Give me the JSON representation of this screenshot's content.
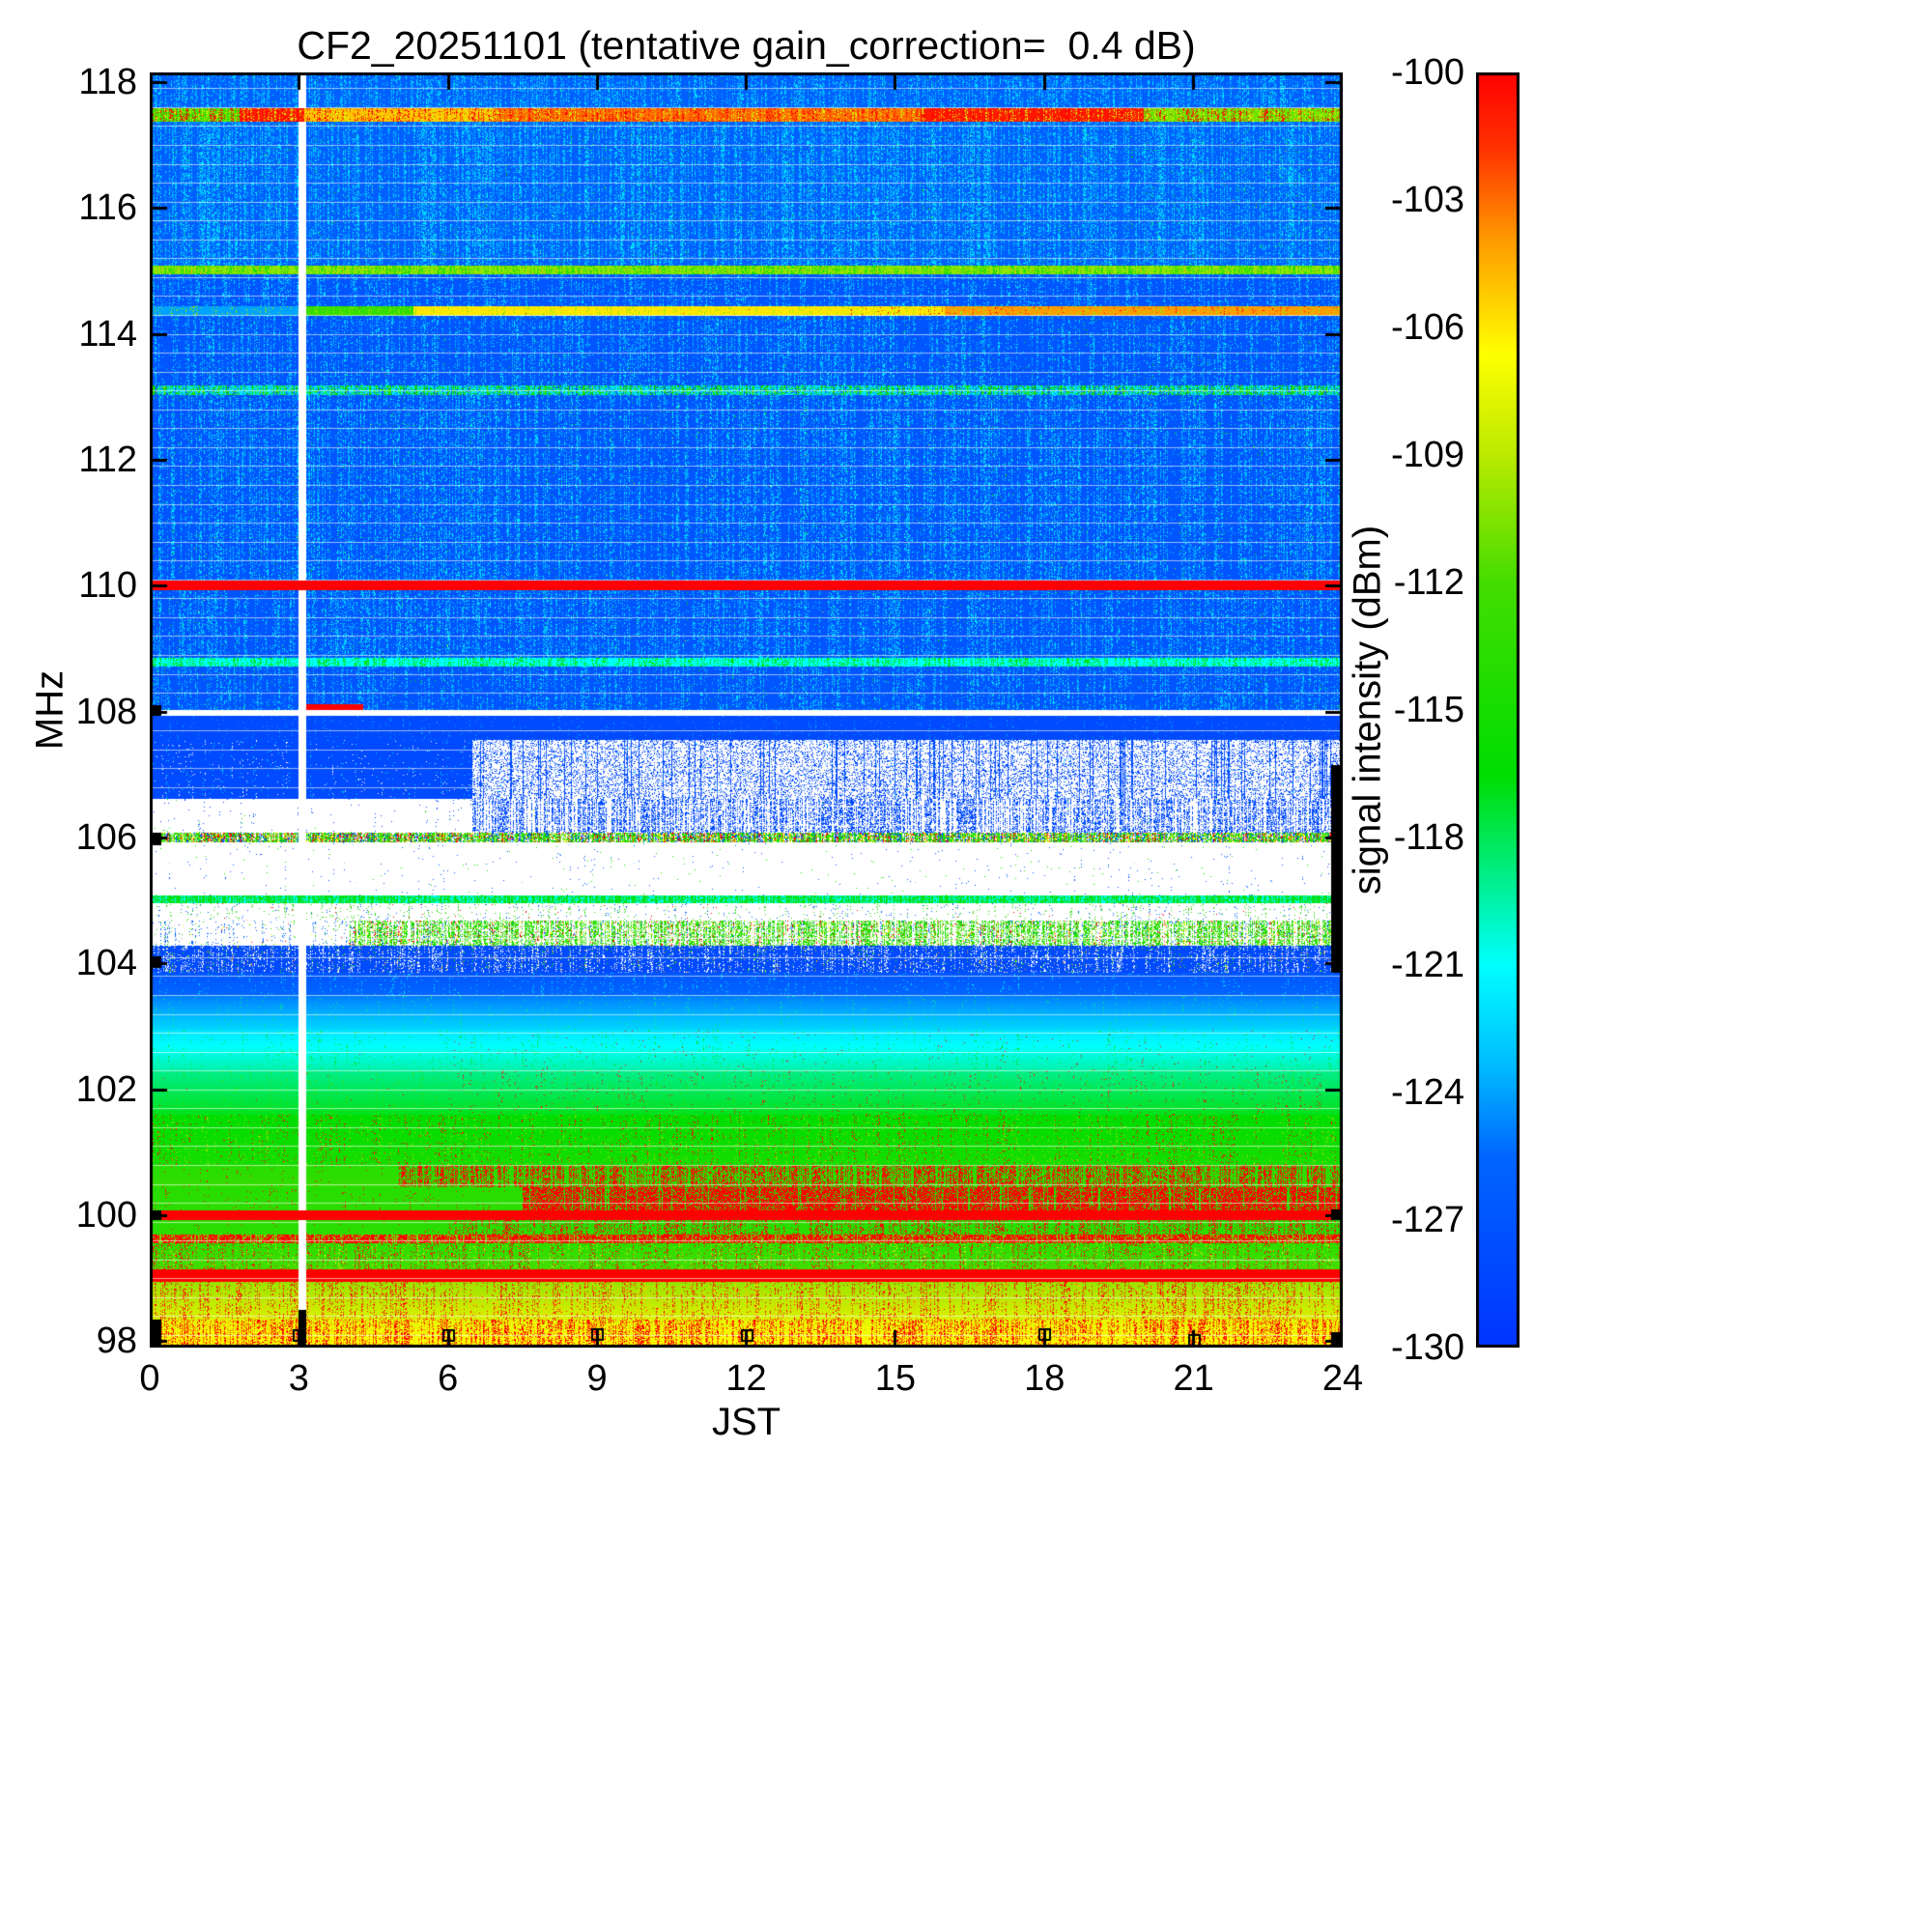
{
  "chart_data": {
    "type": "heatmap",
    "title": "CF2_20251101 (tentative gain_correction=  0.4 dB)",
    "xlabel": "JST",
    "ylabel": "MHz",
    "x_range": [
      0,
      24
    ],
    "x_ticks": [
      0,
      3,
      6,
      9,
      12,
      15,
      18,
      21,
      24
    ],
    "y_range": [
      97.9,
      118.15
    ],
    "y_ticks": [
      98,
      100,
      102,
      104,
      106,
      108,
      110,
      112,
      114,
      116,
      118
    ],
    "colorbar": {
      "label": "signal intensity (dBm)",
      "max_dbm": -100,
      "min_dbm": -130,
      "ticks": [
        -100,
        -103,
        -106,
        -109,
        -112,
        -115,
        -118,
        -121,
        -124,
        -127,
        -130
      ],
      "stops": [
        [
          0.0,
          0,
          51,
          255
        ],
        [
          0.15,
          0,
          102,
          255
        ],
        [
          0.22,
          0,
          187,
          255
        ],
        [
          0.3,
          0,
          255,
          255
        ],
        [
          0.37,
          0,
          238,
          136
        ],
        [
          0.45,
          0,
          221,
          0
        ],
        [
          0.6,
          68,
          221,
          0
        ],
        [
          0.7,
          187,
          234,
          0
        ],
        [
          0.78,
          255,
          255,
          0
        ],
        [
          0.87,
          255,
          153,
          0
        ],
        [
          0.94,
          255,
          51,
          0
        ],
        [
          1.0,
          255,
          0,
          0
        ]
      ]
    },
    "data_gap": {
      "jst_start": 3.0,
      "jst_end": 3.14,
      "bottom_black_f": [
        97.9,
        98.5
      ]
    },
    "strong_carriers_mhz": [
      100.0,
      105.0,
      110.0,
      113.1,
      114.35,
      115.0,
      117.5
    ],
    "fine_lines": {
      "f_start": 98.1,
      "f_end": 118.1,
      "spacing_mhz": 0.3
    },
    "bands": [
      {
        "f0": 97.9,
        "f1": 98.35,
        "level": -106.5,
        "level2": -107.5,
        "sp": [
          {
            "l": -100,
            "d": 0.18
          },
          {
            "l": -104,
            "d": 0.1
          }
        ]
      },
      {
        "f0": 98.35,
        "f1": 98.95,
        "level": -108,
        "level2": -110,
        "sp": [
          {
            "l": -100,
            "d": 0.12
          },
          {
            "l": -105,
            "d": 0.08
          }
        ]
      },
      {
        "f0": 98.95,
        "f1": 99.15,
        "level": -106,
        "sp": [
          {
            "l": -100,
            "d": 0.55
          }
        ]
      },
      {
        "f0": 99.15,
        "f1": 99.55,
        "level": -112,
        "level2": -113.5,
        "sp": [
          {
            "l": -100,
            "d": 0.1
          },
          {
            "l": -108,
            "d": 0.06
          }
        ]
      },
      {
        "f0": 99.55,
        "f1": 99.7,
        "level": -111,
        "sp": [
          {
            "l": -100,
            "d": 0.3
          }
        ]
      },
      {
        "f0": 99.7,
        "f1": 99.93,
        "level": -113.5,
        "level2": -114,
        "sp": [
          {
            "l": -100,
            "d": 0.15,
            "t0": 6
          }
        ]
      },
      {
        "f0": 99.93,
        "f1": 100.08,
        "level": -100,
        "continuous": true
      },
      {
        "f0": 100.08,
        "f1": 100.45,
        "level": -113.5,
        "level2": -114,
        "sp": [
          {
            "l": -100,
            "d": 0.3,
            "t0": 7.5
          }
        ]
      },
      {
        "f0": 100.45,
        "f1": 100.8,
        "level": -113,
        "level2": -114,
        "sp": [
          {
            "l": -100,
            "d": 0.22,
            "t0": 5
          }
        ]
      },
      {
        "f0": 100.8,
        "f1": 101.6,
        "level": -115,
        "level2": -116.5,
        "sp": [
          {
            "l": -100,
            "d": 0.06
          },
          {
            "l": -110,
            "d": 0.05
          }
        ]
      },
      {
        "f0": 101.6,
        "f1": 102.3,
        "level": -117,
        "level2": -119,
        "sp": [
          {
            "l": -100,
            "d": 0.035,
            "t0": 6
          },
          {
            "l": -113,
            "d": 0.05
          }
        ]
      },
      {
        "f0": 102.3,
        "f1": 102.95,
        "level": -119.5,
        "level2": -122,
        "sp": [
          {
            "l": -100,
            "d": 0.015,
            "t0": 6
          },
          {
            "l": -116,
            "d": 0.04
          }
        ]
      },
      {
        "f0": 102.95,
        "f1": 103.5,
        "level": -122.5,
        "level2": -125,
        "sp": [
          {
            "l": -119,
            "d": 0.04
          }
        ]
      },
      {
        "f0": 103.5,
        "f1": 103.85,
        "level": -125.5,
        "level2": -127,
        "sp": [
          {
            "l": -122,
            "d": 0.05
          }
        ]
      },
      {
        "f0": 103.85,
        "f1": 104.28,
        "level": -128,
        "sp": [
          {
            "w": true,
            "d": 0.12
          },
          {
            "l": -104,
            "d": 0.03
          },
          {
            "l": -114,
            "d": 0.04
          }
        ]
      },
      {
        "f0": 104.28,
        "f1": 104.68,
        "level": null,
        "sp": [
          {
            "l": -114,
            "d": 0.22,
            "t0": 4
          },
          {
            "l": -100,
            "d": 0.08,
            "t0": 4
          },
          {
            "l": -107,
            "d": 0.08,
            "t0": 4
          },
          {
            "l": -126,
            "d": 0.08
          }
        ]
      },
      {
        "f0": 104.68,
        "f1": 104.95,
        "level": null,
        "sp": [
          {
            "l": -114,
            "d": 0.05
          },
          {
            "l": -126,
            "d": 0.04
          },
          {
            "l": -100,
            "d": 0.012
          }
        ]
      },
      {
        "f0": 104.95,
        "f1": 105.08,
        "level": -117,
        "continuous": true,
        "sp": [
          {
            "l": -121,
            "d": 0.2
          }
        ]
      },
      {
        "f0": 105.08,
        "f1": 105.93,
        "level": null,
        "sp": [
          {
            "l": -127,
            "d": 0.02
          },
          {
            "l": -115,
            "d": 0.01
          }
        ]
      },
      {
        "f0": 105.93,
        "f1": 106.08,
        "level": -114,
        "sp": [
          {
            "l": -100,
            "d": 0.12
          },
          {
            "l": -106,
            "d": 0.12
          },
          {
            "l": -127,
            "d": 0.15
          },
          {
            "w": true,
            "d": 0.2
          }
        ]
      },
      {
        "f0": 106.08,
        "f1": 106.62,
        "level": null,
        "sp": [
          {
            "l": -128,
            "d": 0.22,
            "t0": 6.5
          },
          {
            "l": -115,
            "d": 0.01
          }
        ]
      },
      {
        "f0": 106.62,
        "f1": 107.55,
        "level": -128,
        "sp": [
          {
            "w": true,
            "d": 0.3,
            "t0": 6.5
          },
          {
            "l": -122,
            "d": 0.03
          }
        ]
      },
      {
        "f0": 107.55,
        "f1": 107.93,
        "level": -128,
        "sp": [
          {
            "l": -124,
            "d": 0.05
          }
        ]
      },
      {
        "f0": 107.93,
        "f1": 108.03,
        "level": null
      },
      {
        "f0": 108.03,
        "f1": 108.72,
        "level": -127,
        "sp": [
          {
            "l": -122,
            "d": 0.12
          },
          {
            "l": -116,
            "d": 0.012
          }
        ]
      },
      {
        "f0": 108.72,
        "f1": 108.85,
        "level": -121,
        "sp": [
          {
            "l": -117,
            "d": 0.2
          }
        ]
      },
      {
        "f0": 108.85,
        "f1": 109.93,
        "level": -127,
        "sp": [
          {
            "l": -122,
            "d": 0.13
          },
          {
            "l": -116,
            "d": 0.012
          },
          {
            "l": -108,
            "d": 0.002
          }
        ]
      },
      {
        "f0": 109.93,
        "f1": 110.08,
        "level": -100,
        "continuous": true
      },
      {
        "f0": 110.08,
        "f1": 113.03,
        "level": -127,
        "sp": [
          {
            "l": -122,
            "d": 0.14
          },
          {
            "l": -116,
            "d": 0.015
          },
          {
            "l": -108,
            "d": 0.002
          }
        ]
      },
      {
        "f0": 113.03,
        "f1": 113.18,
        "level": -115,
        "sp": [
          {
            "l": -122,
            "d": 0.25
          },
          {
            "l": -127,
            "d": 0.2
          },
          {
            "l": -104,
            "d": 0.03
          }
        ]
      },
      {
        "f0": 113.18,
        "f1": 114.28,
        "level": -127,
        "sp": [
          {
            "l": -122,
            "d": 0.13
          },
          {
            "l": -116,
            "d": 0.012
          }
        ]
      },
      {
        "f0": 114.28,
        "f1": 114.44,
        "segments": [
          {
            "t0": 0,
            "t1": 3.1,
            "level": -124
          },
          {
            "t0": 3.1,
            "t1": 5.3,
            "level": -113
          },
          {
            "t0": 5.3,
            "t1": 16,
            "level": -106
          },
          {
            "t0": 16,
            "t1": 24,
            "level": -104
          }
        ],
        "sp": [
          {
            "l": -100,
            "d": 0.06,
            "t0": 14
          },
          {
            "l": -110,
            "d": 0.1
          }
        ]
      },
      {
        "f0": 114.44,
        "f1": 114.95,
        "level": -127,
        "sp": [
          {
            "l": -122,
            "d": 0.12
          }
        ]
      },
      {
        "f0": 114.95,
        "f1": 115.08,
        "level": -110,
        "sp": [
          {
            "l": -114,
            "d": 0.2
          },
          {
            "l": -104,
            "d": 0.05
          }
        ]
      },
      {
        "f0": 115.08,
        "f1": 117.36,
        "level": -126,
        "sp": [
          {
            "l": -122,
            "d": 0.16
          },
          {
            "l": -116,
            "d": 0.015
          },
          {
            "l": -108,
            "d": 0.002
          }
        ]
      },
      {
        "f0": 117.36,
        "f1": 117.58,
        "continuous": true,
        "segments": [
          {
            "t0": 0,
            "t1": 1.8,
            "level": -112
          },
          {
            "t0": 1.8,
            "t1": 3.1,
            "level": -101
          },
          {
            "t0": 3.1,
            "t1": 7,
            "level": -105
          },
          {
            "t0": 7,
            "t1": 15.5,
            "level": -103
          },
          {
            "t0": 15.5,
            "t1": 20,
            "level": -101
          },
          {
            "t0": 20,
            "t1": 24,
            "level": -111
          }
        ],
        "sp": [
          {
            "l": -100,
            "d": 0.15
          },
          {
            "l": -108,
            "d": 0.15
          }
        ]
      },
      {
        "f0": 117.58,
        "f1": 118.15,
        "level": -126,
        "sp": [
          {
            "l": -122,
            "d": 0.15
          },
          {
            "l": -115,
            "d": 0.01
          }
        ]
      }
    ],
    "features": [
      {
        "f0": 108.02,
        "f1": 108.12,
        "t0": 3.15,
        "t1": 4.3,
        "level": -100
      }
    ],
    "edge_marks": {
      "left": [
        [
          97.9,
          98.35
        ],
        [
          99.93,
          100.08
        ],
        [
          103.93,
          104.12
        ],
        [
          105.88,
          106.08
        ],
        [
          107.93,
          108.1
        ]
      ],
      "right": [
        [
          97.9,
          98.15
        ],
        [
          99.93,
          100.1
        ],
        [
          103.85,
          107.15
        ]
      ]
    },
    "markers": [
      {
        "t": 3.0,
        "f": 98.1
      },
      {
        "t": 6.0,
        "f": 98.1
      },
      {
        "t": 9.0,
        "f": 98.12
      },
      {
        "t": 12.0,
        "f": 98.1
      },
      {
        "t": 18.0,
        "f": 98.12
      },
      {
        "t": 21.0,
        "f": 98.02
      }
    ]
  }
}
